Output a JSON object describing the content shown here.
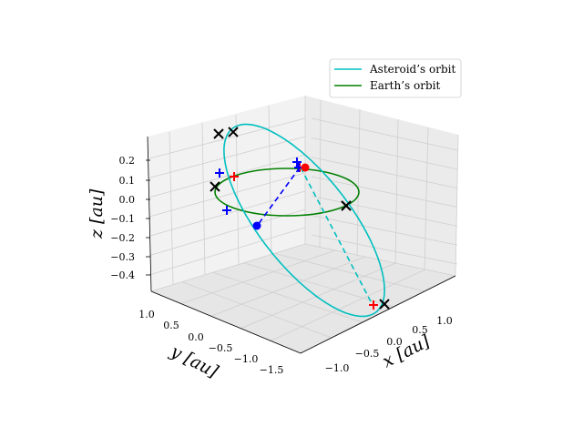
{
  "chart_data": {
    "type": "line3d",
    "title": "",
    "xlabel": "$x$ [au]",
    "ylabel": "$y$ [au]",
    "zlabel": "$z$ [au]",
    "xlabel_text": "x [au]",
    "ylabel_text": "y [au]",
    "zlabel_text": "z [au]",
    "xticks": [
      "−1.0",
      "−0.5",
      "0.0",
      "0.5",
      "1.0"
    ],
    "yticks": [
      "1.0",
      "0.5",
      "0.0",
      "−0.5",
      "−1.0",
      "−1.5"
    ],
    "zticks": [
      "0.2",
      "0.1",
      "0.0",
      "−0.1",
      "−0.2",
      "−0.3",
      "−0.4"
    ],
    "xlim": [
      -1.5,
      1.5
    ],
    "ylim": [
      -1.8,
      1.2
    ],
    "zlim": [
      -0.45,
      0.3
    ],
    "grid": true,
    "legend_position": "top-right",
    "legend": [
      {
        "label": "Asteroid’s orbit",
        "color": "#00bfbf"
      },
      {
        "label": "Earth’s orbit",
        "color": "#008000"
      }
    ],
    "series": [
      {
        "name": "Asteroid’s orbit",
        "color": "#00bfbf",
        "style": "solid/dashed",
        "kind": "ellipse"
      },
      {
        "name": "Earth’s orbit",
        "color": "#008000",
        "style": "solid",
        "kind": "circle",
        "radius": 1.0
      }
    ],
    "markers": {
      "black_x": 6,
      "red_plus": 3,
      "blue_plus": 4,
      "red_dot": 1,
      "blue_dot": 1
    },
    "colors": {
      "asteroid": "#00bfbf",
      "earth": "#008000",
      "blue": "#0000ff",
      "red": "#ff0000",
      "black": "#000000"
    }
  }
}
